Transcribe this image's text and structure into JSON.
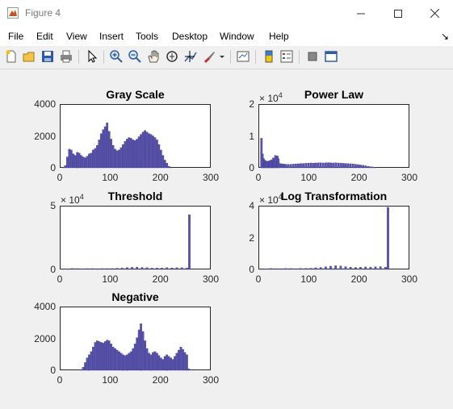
{
  "window": {
    "title": "Figure 4"
  },
  "menu": [
    "File",
    "Edit",
    "View",
    "Insert",
    "Tools",
    "Desktop",
    "Window",
    "Help"
  ],
  "chart_data": [
    {
      "type": "bar",
      "title": "Gray Scale",
      "xlim": [
        0,
        300
      ],
      "ylim": [
        0,
        4000
      ],
      "xticks": [
        "0",
        "100",
        "200",
        "300"
      ],
      "yticks": [
        "0",
        "2000",
        "4000"
      ],
      "exponent": "",
      "x": [
        2,
        6,
        10,
        14,
        18,
        22,
        26,
        30,
        34,
        38,
        42,
        46,
        50,
        54,
        58,
        62,
        66,
        70,
        74,
        78,
        82,
        86,
        90,
        94,
        98,
        102,
        106,
        110,
        114,
        118,
        122,
        126,
        130,
        134,
        138,
        142,
        146,
        150,
        154,
        158,
        162,
        166,
        170,
        174,
        178,
        182,
        186,
        190,
        194,
        198,
        202,
        206,
        210,
        214,
        218
      ],
      "values": [
        40,
        150,
        700,
        1200,
        1150,
        900,
        800,
        1000,
        950,
        800,
        700,
        650,
        750,
        900,
        950,
        1150,
        1250,
        1450,
        1800,
        2200,
        2450,
        2650,
        2900,
        2350,
        1850,
        1450,
        1200,
        1100,
        1150,
        1300,
        1500,
        1700,
        1850,
        1950,
        1900,
        1800,
        1750,
        1850,
        2000,
        2150,
        2300,
        2400,
        2300,
        2200,
        2150,
        2050,
        1950,
        1800,
        1500,
        1150,
        800,
        500,
        300,
        100,
        20
      ]
    },
    {
      "type": "bar",
      "title": "Power Law",
      "xlim": [
        0,
        300
      ],
      "ylim": [
        0,
        20000
      ],
      "xticks": [
        "0",
        "100",
        "200",
        "300"
      ],
      "yticks": [
        "0",
        "1",
        "2"
      ],
      "exponent": "4",
      "x": [
        1,
        3,
        5,
        7,
        9,
        11,
        13,
        15,
        17,
        19,
        21,
        23,
        25,
        27,
        29,
        31,
        33,
        35,
        38,
        42,
        46,
        50,
        55,
        60,
        65,
        70,
        75,
        80,
        85,
        90,
        95,
        100,
        105,
        110,
        115,
        120,
        125,
        130,
        135,
        140,
        145,
        150,
        155,
        160,
        165,
        170,
        175,
        180,
        185,
        190,
        195,
        200,
        205,
        210,
        215,
        220,
        225,
        230
      ],
      "values": [
        9500,
        4500,
        3000,
        2500,
        1800,
        2200,
        1600,
        2000,
        2300,
        1800,
        2600,
        1900,
        3200,
        2200,
        4000,
        1800,
        3800,
        2900,
        1400,
        1300,
        1200,
        1150,
        1100,
        1150,
        1200,
        1250,
        1300,
        1350,
        1400,
        1450,
        1500,
        1550,
        1500,
        1550,
        1600,
        1600,
        1550,
        1600,
        1650,
        1600,
        1550,
        1600,
        1550,
        1500,
        1450,
        1400,
        1350,
        1300,
        1250,
        1150,
        1050,
        900,
        800,
        650,
        500,
        350,
        250,
        150
      ]
    },
    {
      "type": "bar",
      "title": "Threshold",
      "xlim": [
        0,
        300
      ],
      "ylim": [
        0,
        50000
      ],
      "xticks": [
        "0",
        "100",
        "200",
        "300"
      ],
      "yticks": [
        "0",
        "5"
      ],
      "exponent": "4",
      "x": [
        0,
        10,
        20,
        30,
        40,
        50,
        60,
        70,
        80,
        90,
        100,
        110,
        120,
        130,
        140,
        150,
        160,
        170,
        180,
        190,
        200,
        210,
        220,
        230,
        240,
        250,
        255
      ],
      "values": [
        500,
        500,
        800,
        700,
        600,
        700,
        700,
        600,
        700,
        700,
        800,
        1000,
        1200,
        1500,
        1700,
        1800,
        1600,
        1400,
        1200,
        1100,
        1200,
        1400,
        1300,
        1400,
        1500,
        1200,
        44000
      ]
    },
    {
      "type": "bar",
      "title": "Log Transformation",
      "xlim": [
        0,
        300
      ],
      "ylim": [
        0,
        40000
      ],
      "xticks": [
        "0",
        "100",
        "200",
        "300"
      ],
      "yticks": [
        "0",
        "2",
        "4"
      ],
      "exponent": "4",
      "x": [
        0,
        10,
        20,
        30,
        40,
        50,
        60,
        70,
        80,
        90,
        100,
        110,
        120,
        130,
        140,
        150,
        160,
        170,
        180,
        190,
        200,
        210,
        220,
        230,
        240,
        250,
        255
      ],
      "values": [
        300,
        400,
        600,
        500,
        500,
        600,
        600,
        500,
        700,
        700,
        800,
        1100,
        1300,
        1700,
        2100,
        2400,
        2200,
        1800,
        1500,
        1300,
        1400,
        1600,
        1500,
        1700,
        1800,
        1500,
        40000
      ]
    },
    {
      "type": "bar",
      "title": "Negative",
      "xlim": [
        0,
        300
      ],
      "ylim": [
        0,
        4000
      ],
      "xticks": [
        "0",
        "100",
        "200",
        "300"
      ],
      "yticks": [
        "0",
        "2000",
        "4000"
      ],
      "exponent": "",
      "x": [
        38,
        42,
        46,
        50,
        54,
        58,
        62,
        66,
        70,
        74,
        78,
        82,
        86,
        90,
        94,
        98,
        102,
        106,
        110,
        114,
        118,
        122,
        126,
        130,
        134,
        138,
        142,
        146,
        150,
        154,
        158,
        162,
        166,
        170,
        174,
        178,
        182,
        186,
        190,
        194,
        198,
        202,
        206,
        210,
        214,
        218,
        222,
        226,
        230,
        234,
        238,
        242,
        246,
        250,
        254
      ],
      "values": [
        50,
        200,
        500,
        800,
        1000,
        1200,
        1500,
        1800,
        1900,
        1850,
        1800,
        1750,
        1850,
        1950,
        1900,
        1700,
        1500,
        1400,
        1300,
        1200,
        1100,
        1000,
        950,
        1000,
        1100,
        1200,
        1400,
        1700,
        2100,
        2600,
        3000,
        2500,
        1900,
        1400,
        1100,
        1000,
        1150,
        1200,
        1100,
        950,
        800,
        700,
        900,
        1000,
        900,
        800,
        700,
        900,
        1100,
        1300,
        1500,
        1350,
        1150,
        1000,
        100
      ]
    }
  ]
}
